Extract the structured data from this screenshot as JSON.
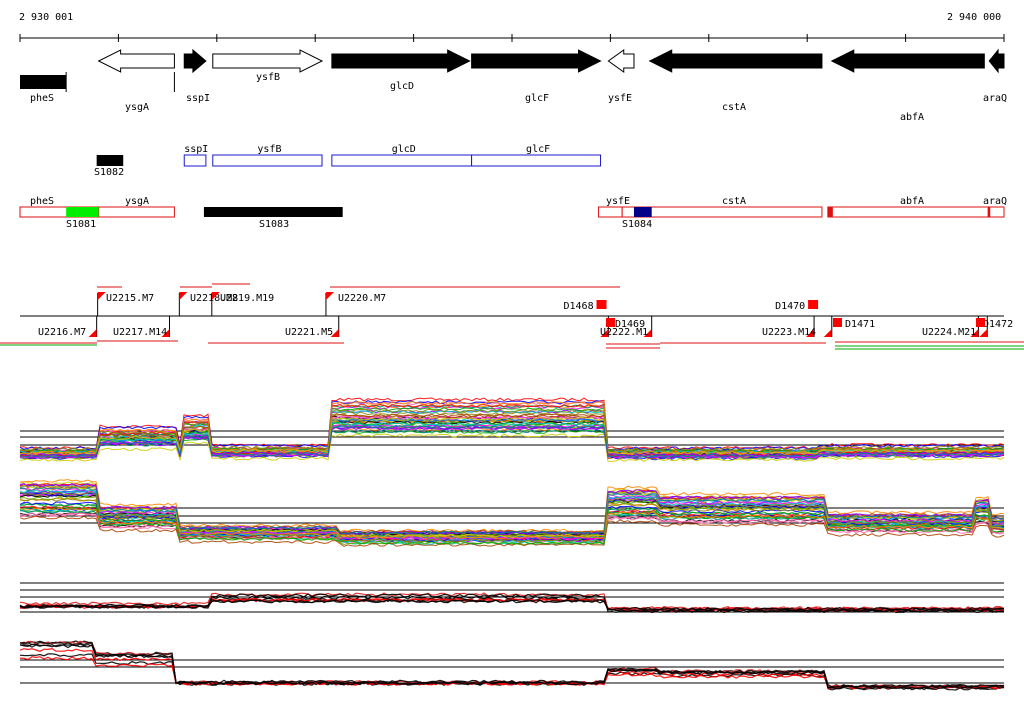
{
  "coordinates": {
    "start": "2 930 001",
    "end": "2 940 000"
  },
  "genes": [
    {
      "label": "pheS",
      "x1": 2930001,
      "x2": 2930470,
      "strand": "fwd",
      "fill": "black"
    },
    {
      "label": "ysgA",
      "x1": 2930800,
      "x2": 2931570,
      "strand": "rev",
      "fill": "white"
    },
    {
      "label": "sspI",
      "x1": 2931670,
      "x2": 2931890,
      "strand": "fwd",
      "fill": "black"
    },
    {
      "label": "ysfB",
      "x1": 2931960,
      "x2": 2933070,
      "strand": "fwd",
      "fill": "white"
    },
    {
      "label": "glcD",
      "x1": 2933170,
      "x2": 2934570,
      "strand": "fwd",
      "fill": "black"
    },
    {
      "label": "glcF",
      "x1": 2934590,
      "x2": 2935900,
      "strand": "fwd",
      "fill": "black"
    },
    {
      "label": "ysfE",
      "x1": 2935980,
      "x2": 2936240,
      "strand": "rev",
      "fill": "white"
    },
    {
      "label": "cstA",
      "x1": 2936400,
      "x2": 2938150,
      "strand": "rev",
      "fill": "black"
    },
    {
      "label": "abfA",
      "x1": 2938250,
      "x2": 2939800,
      "strand": "rev",
      "fill": "black"
    },
    {
      "label": "araQ",
      "x1": 2939850,
      "x2": 2940000,
      "strand": "rev",
      "fill": "black"
    }
  ],
  "transcription_units": {
    "blue": [
      {
        "label": "sspI",
        "x1": 2931670,
        "x2": 2931890
      },
      {
        "label": "ysfB",
        "x1": 2931960,
        "x2": 2933070
      },
      {
        "label": "glcD",
        "x1": 2933170,
        "x2": 2934590
      },
      {
        "label": "glcF",
        "x1": 2934590,
        "x2": 2935900
      }
    ],
    "red": [
      {
        "label": "pheS",
        "x1": 2930001,
        "x2": 2930800
      },
      {
        "label": "ysgA",
        "x1": 2930800,
        "x2": 2931570
      },
      {
        "label": "ysfE",
        "x1": 2935880,
        "x2": 2936120
      },
      {
        "label": "cstA",
        "x1": 2936120,
        "x2": 2938150
      },
      {
        "label": "abfA",
        "x1": 2938210,
        "x2": 2939840
      },
      {
        "label": "araQ",
        "x1": 2939840,
        "x2": 2940000
      }
    ]
  },
  "elements": [
    {
      "label": "S1082",
      "x1": 2930780,
      "x2": 2931050,
      "row": "upper",
      "color": "#000000"
    },
    {
      "label": "S1081",
      "x1": 2930470,
      "x2": 2930800,
      "row": "lower",
      "color": "#00ee00"
    },
    {
      "label": "S1083",
      "x1": 2931870,
      "x2": 2933280,
      "row": "lower",
      "color": "#000000"
    },
    {
      "label": "S1084",
      "x1": 2936240,
      "x2": 2936420,
      "row": "lower",
      "color": "#000088"
    }
  ],
  "segments_top": [
    {
      "label": "U2215.M7",
      "x": 2930790
    },
    {
      "label": "U2218.M8",
      "x": 2931620
    },
    {
      "label": "U2219.M19",
      "x": 2931950
    },
    {
      "label": "U2220.M7",
      "x": 2933110
    }
  ],
  "segments_bottom": [
    {
      "label": "U2216.M7",
      "x": 2930780
    },
    {
      "label": "U2217.M14",
      "x": 2931520
    },
    {
      "label": "U2221.M5",
      "x": 2933240
    },
    {
      "label": "D1469",
      "x": 2935980
    },
    {
      "label": "U2222.M1",
      "x": 2936420
    },
    {
      "label": "U2223.M14",
      "x": 2938070
    },
    {
      "label": "D1471",
      "x": 2938250
    },
    {
      "label": "U2224.M21",
      "x": 2939740
    },
    {
      "label": "D1472",
      "x": 2939830
    }
  ],
  "d_markers": [
    {
      "label": "D1468",
      "x": 2935910
    },
    {
      "label": "D1470",
      "x": 2938060
    }
  ],
  "colors": {
    "gene_black": "#000000",
    "tu_blue": "#1a1acc",
    "tu_red": "#dd1111",
    "marker_red": "#ff0000"
  }
}
